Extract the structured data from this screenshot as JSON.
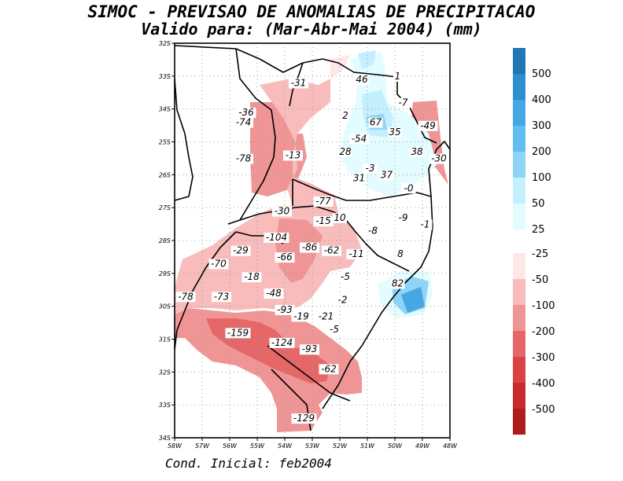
{
  "title": {
    "line1": "SIMOC - PREVISAO DE ANOMALIAS DE PRECIPITACAO",
    "line2": "Valido para: (Mar-Abr-Mai 2004) (mm)"
  },
  "footer": "Cond. Inicial: feb2004",
  "map": {
    "lat_ticks": [
      "32S",
      "33S",
      "34S",
      "25S",
      "26S",
      "27S",
      "28S",
      "29S",
      "30S",
      "31S",
      "32S",
      "33S",
      "34S"
    ],
    "lon_ticks": [
      "58W",
      "57W",
      "56W",
      "55W",
      "54W",
      "53W",
      "52W",
      "51W",
      "50W",
      "49W",
      "48W"
    ],
    "contour_labels": [
      {
        "text": "-31",
        "lon": -53.5,
        "lat": -23.3
      },
      {
        "text": "46",
        "lon": -51.2,
        "lat": -23.2
      },
      {
        "text": "1",
        "lon": -49.9,
        "lat": -23.1
      },
      {
        "text": "-36",
        "lon": -55.4,
        "lat": -24.2
      },
      {
        "text": "-7",
        "lon": -49.7,
        "lat": -23.9
      },
      {
        "text": "-74",
        "lon": -55.5,
        "lat": -24.5
      },
      {
        "text": "2",
        "lon": -51.8,
        "lat": -24.3
      },
      {
        "text": "67",
        "lon": -50.7,
        "lat": -24.5
      },
      {
        "text": "-49",
        "lon": -48.8,
        "lat": -24.6
      },
      {
        "text": "35",
        "lon": -50.0,
        "lat": -24.8
      },
      {
        "text": "-54",
        "lon": -51.3,
        "lat": -25.0
      },
      {
        "text": "28",
        "lon": -51.8,
        "lat": -25.4
      },
      {
        "text": "38",
        "lon": -49.2,
        "lat": -25.4
      },
      {
        "text": "-30",
        "lon": -48.4,
        "lat": -25.6
      },
      {
        "text": "-78",
        "lon": -55.5,
        "lat": -25.6
      },
      {
        "text": "-13",
        "lon": -53.7,
        "lat": -25.5
      },
      {
        "text": "-3",
        "lon": -50.9,
        "lat": -25.9
      },
      {
        "text": "37",
        "lon": -50.3,
        "lat": -26.1
      },
      {
        "text": "31",
        "lon": -51.3,
        "lat": -26.2
      },
      {
        "text": "-0",
        "lon": -49.5,
        "lat": -26.5
      },
      {
        "text": "-77",
        "lon": -52.6,
        "lat": -26.9
      },
      {
        "text": "-30",
        "lon": -54.1,
        "lat": -27.2
      },
      {
        "text": "-15",
        "lon": -52.6,
        "lat": -27.5
      },
      {
        "text": "10",
        "lon": -52.0,
        "lat": -27.4
      },
      {
        "text": "-9",
        "lon": -49.7,
        "lat": -27.4
      },
      {
        "text": "-1",
        "lon": -48.9,
        "lat": -27.6
      },
      {
        "text": "-8",
        "lon": -50.8,
        "lat": -27.8
      },
      {
        "text": "-104",
        "lon": -54.3,
        "lat": -28.0
      },
      {
        "text": "-29",
        "lon": -55.6,
        "lat": -28.4
      },
      {
        "text": "-86",
        "lon": -53.1,
        "lat": -28.3
      },
      {
        "text": "-62",
        "lon": -52.3,
        "lat": -28.4
      },
      {
        "text": "-11",
        "lon": -51.4,
        "lat": -28.5
      },
      {
        "text": "-70",
        "lon": -56.4,
        "lat": -28.8
      },
      {
        "text": "-66",
        "lon": -54.0,
        "lat": -28.6
      },
      {
        "text": "8",
        "lon": -49.8,
        "lat": -28.5
      },
      {
        "text": "-18",
        "lon": -55.2,
        "lat": -29.2
      },
      {
        "text": "-5",
        "lon": -51.8,
        "lat": -29.2
      },
      {
        "text": "82",
        "lon": -49.9,
        "lat": -29.4
      },
      {
        "text": "-78",
        "lon": -57.6,
        "lat": -29.8
      },
      {
        "text": "-73",
        "lon": -56.3,
        "lat": -29.8
      },
      {
        "text": "-48",
        "lon": -54.4,
        "lat": -29.7
      },
      {
        "text": "-2",
        "lon": -51.9,
        "lat": -29.9
      },
      {
        "text": "-93",
        "lon": -54.0,
        "lat": -30.2
      },
      {
        "text": "-19",
        "lon": -53.4,
        "lat": -30.4
      },
      {
        "text": "-21",
        "lon": -52.5,
        "lat": -30.4
      },
      {
        "text": "-5",
        "lon": -52.2,
        "lat": -30.8
      },
      {
        "text": "-159",
        "lon": -55.7,
        "lat": -30.9
      },
      {
        "text": "-124",
        "lon": -54.1,
        "lat": -31.2
      },
      {
        "text": "-93",
        "lon": -53.1,
        "lat": -31.4
      },
      {
        "text": "-62",
        "lon": -52.4,
        "lat": -32.0
      },
      {
        "text": "-129",
        "lon": -53.3,
        "lat": -33.5
      }
    ]
  },
  "colorbar": {
    "positive_labels": [
      "500",
      "400",
      "300",
      "200",
      "100",
      "50",
      "25"
    ],
    "negative_labels": [
      "-25",
      "-50",
      "-100",
      "-200",
      "-300",
      "-400",
      "-500"
    ],
    "positive_colors": [
      "#1f78b4",
      "#2e8fd0",
      "#45a7e3",
      "#62bdf0",
      "#8fd4f7",
      "#c4efff",
      "#e3fcff"
    ],
    "negative_colors": [
      "#fde7e7",
      "#f8bcbc",
      "#ef9595",
      "#e66767",
      "#d94343",
      "#c72b2b",
      "#b01c1c"
    ]
  }
}
